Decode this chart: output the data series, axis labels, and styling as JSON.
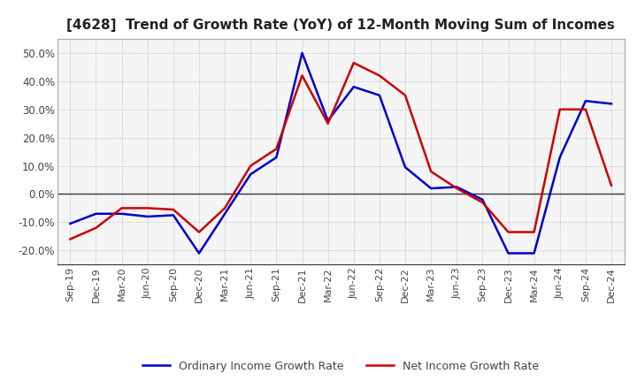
{
  "title": "[4628]  Trend of Growth Rate (YoY) of 12-Month Moving Sum of Incomes",
  "title_fontsize": 11,
  "x_labels": [
    "Sep-19",
    "Dec-19",
    "Mar-20",
    "Jun-20",
    "Sep-20",
    "Dec-20",
    "Mar-21",
    "Jun-21",
    "Sep-21",
    "Dec-21",
    "Mar-22",
    "Jun-22",
    "Sep-22",
    "Dec-22",
    "Mar-23",
    "Jun-23",
    "Sep-23",
    "Dec-23",
    "Mar-24",
    "Jun-24",
    "Sep-24",
    "Dec-24"
  ],
  "ordinary_income": [
    -10.5,
    -7.0,
    -7.0,
    -8.0,
    -7.5,
    -21.0,
    -7.0,
    7.0,
    13.0,
    50.0,
    26.0,
    38.0,
    35.0,
    9.5,
    2.0,
    2.5,
    -2.0,
    -21.0,
    -21.0,
    13.0,
    33.0,
    32.0
  ],
  "net_income": [
    -16.0,
    -12.0,
    -5.0,
    -5.0,
    -5.5,
    -13.5,
    -5.0,
    10.0,
    16.0,
    42.0,
    25.0,
    46.5,
    42.0,
    35.0,
    8.0,
    2.0,
    -3.0,
    -13.5,
    -13.5,
    30.0,
    30.0,
    3.0
  ],
  "ordinary_color": "#0000cc",
  "net_color": "#cc0000",
  "ylim": [
    -25,
    55
  ],
  "yticks": [
    -20.0,
    -10.0,
    0.0,
    10.0,
    20.0,
    30.0,
    40.0,
    50.0
  ],
  "background_color": "#ffffff",
  "plot_bg_color": "#f5f5f5",
  "grid_color": "#aaaaaa",
  "zero_line_color": "#333333",
  "legend_labels": [
    "Ordinary Income Growth Rate",
    "Net Income Growth Rate"
  ]
}
